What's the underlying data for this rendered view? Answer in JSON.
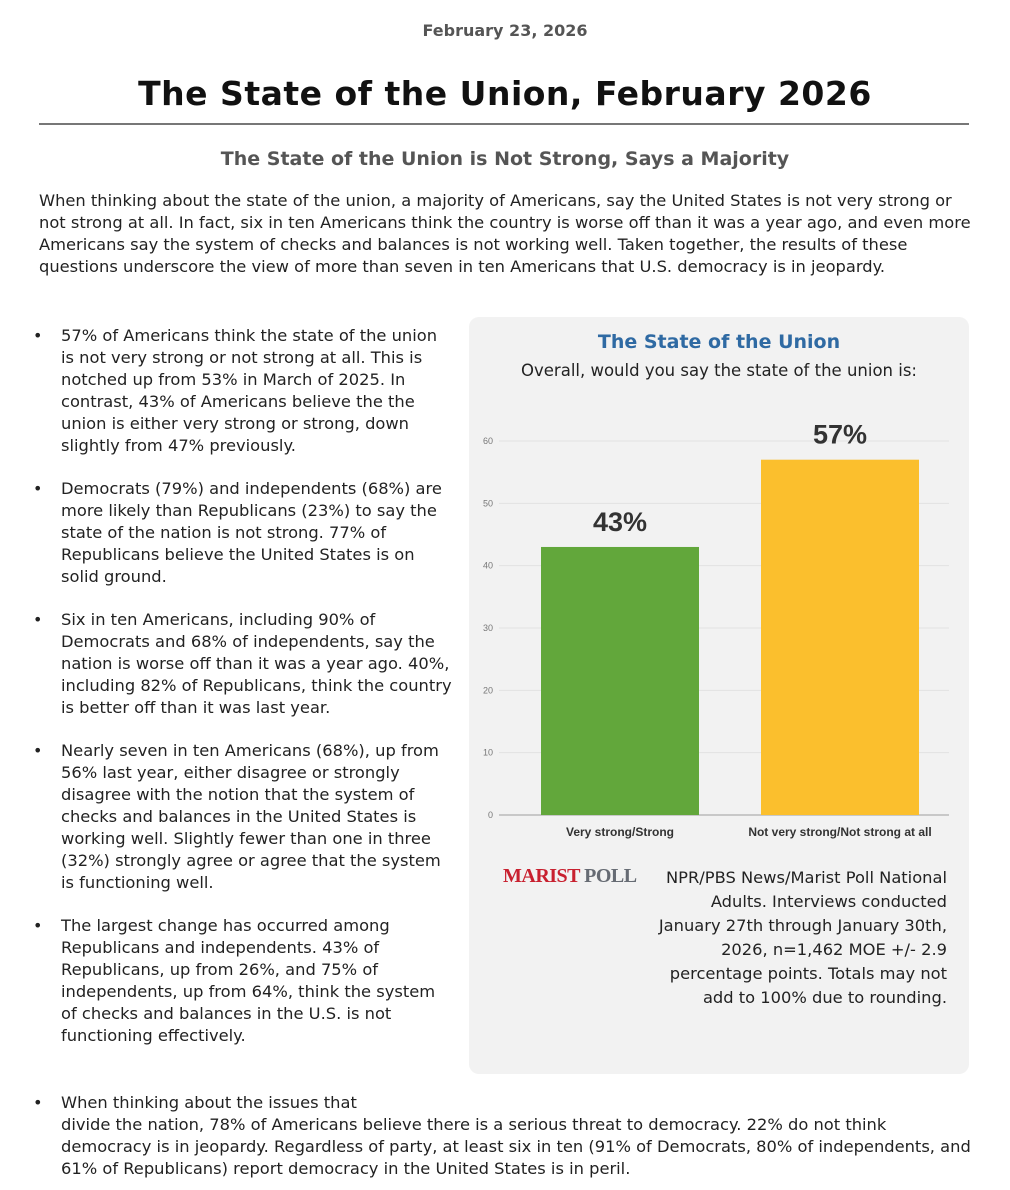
{
  "date": "February 23, 2026",
  "title": "The State of the Union, February 2026",
  "subtitle": "The State of the Union is Not Strong, Says a Majority",
  "intro": "When thinking about the state of the union, a majority of Americans, say the United States is not very strong or not strong at all. In fact, six in ten Americans think the country is worse off than it was a year ago, and even more Americans say the system of checks and balances is not working well. Taken together, the results of these questions underscore the view of more than seven in ten Americans that U.S. democracy is in jeopardy.",
  "bullets": [
    "57% of Americans think the state of the union is not very strong or not strong at all. This is notched up from 53% in March of 2025. In contrast, 43% of Americans believe the the union is either very strong or strong, down slightly from 47% previously.",
    "Democrats (79%) and independents (68%) are more likely than Republicans (23%) to say the state of the nation is not strong. 77% of Republicans believe the United States is on solid ground.",
    "Six in ten Americans, including 90% of Democrats and 68% of independents, say the nation is worse off than it was a year ago. 40%, including 82% of Republicans, think the country is better off than it was last year.",
    "Nearly seven in ten Americans (68%), up from 56% last year, either disagree or strongly disagree with the notion that the system of checks and balances in the United States is working well. Slightly fewer than one in three (32%) strongly agree or agree that the system is functioning well.",
    "The largest change has occurred among Republicans and independents. 43% of Republicans, up from 26%, and 75% of independents, up from 64%, think the system of checks and balances in the U.S. is not functioning effectively."
  ],
  "last_bullet": {
    "lead": "When thinking about the issues that",
    "rest": "divide the nation, 78% of Americans believe there is a serious threat to democracy. 22% do not think democracy is in jeopardy. Regardless of party, at least six in ten (91% of Democrats, 80% of independents, and 61% of Republicans) report democracy in the United States is in peril."
  },
  "chart_data": {
    "type": "bar",
    "title": "The State of the Union",
    "subtitle": "Overall, would you say the state of the union is:",
    "categories": [
      "Very strong/Strong",
      "Not very strong/Not strong at all"
    ],
    "values": [
      43,
      57
    ],
    "data_labels": [
      "43%",
      "57%"
    ],
    "colors": [
      "#62a73b",
      "#fbbf2d"
    ],
    "ylim": [
      0,
      60
    ],
    "yticks": [
      0,
      10,
      20,
      30,
      40,
      50,
      60
    ],
    "grid": true,
    "xlabel": "",
    "ylabel": ""
  },
  "logo": {
    "part1": "MARIST",
    "part2": "POLL"
  },
  "source": "NPR/PBS News/Marist Poll National Adults. Interviews conducted January 27th through January 30th, 2026, n=1,462 MOE +/- 2.9 percentage points. Totals may not add to 100% due to rounding."
}
